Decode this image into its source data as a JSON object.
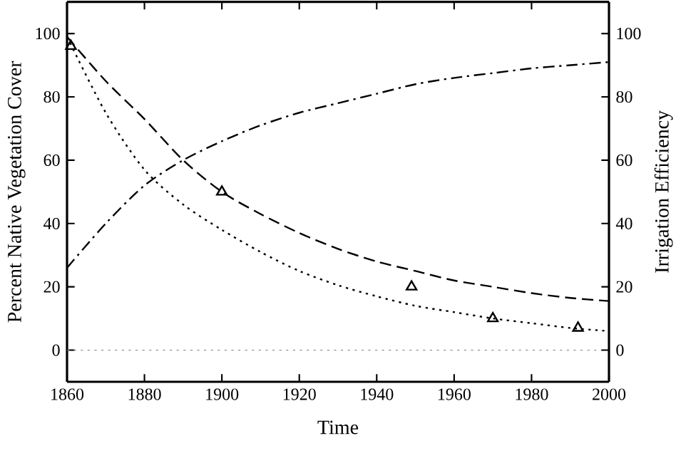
{
  "chart_data": {
    "type": "line",
    "xlabel": "Time",
    "ylabel": "Percent Native Vegetation Cover",
    "y2label": "Irrigation Efficiency",
    "xlim": [
      1860,
      2000
    ],
    "xticks": [
      1860,
      1880,
      1900,
      1920,
      1940,
      1960,
      1980,
      2000
    ],
    "ylim": [
      -10,
      110
    ],
    "yticks": [
      0,
      20,
      40,
      60,
      80,
      100
    ],
    "y2lim": [
      -10,
      110
    ],
    "y2ticks": [
      0,
      20,
      40,
      60,
      80,
      100
    ],
    "grid": false,
    "ref_lines": [
      {
        "axis": "y",
        "value": 0,
        "color": "#888888",
        "line_style": "dotted"
      }
    ],
    "series": [
      {
        "color": "#000000",
        "line_style": "dashed",
        "marker": "none",
        "x": [
          1860,
          1870,
          1880,
          1890,
          1900,
          1910,
          1920,
          1930,
          1940,
          1950,
          1960,
          1970,
          1980,
          1990,
          2000
        ],
        "values": [
          99,
          85,
          73,
          60,
          50,
          43,
          37,
          32,
          28,
          25,
          22,
          20,
          18,
          16.5,
          15.5
        ]
      },
      {
        "color": "#000000",
        "line_style": "dotted",
        "marker": "none",
        "x": [
          1860,
          1870,
          1880,
          1890,
          1900,
          1910,
          1920,
          1930,
          1940,
          1950,
          1960,
          1970,
          1980,
          1990,
          2000
        ],
        "values": [
          99,
          75,
          57,
          46,
          38,
          31,
          25,
          20.5,
          17,
          14,
          12,
          10,
          8.5,
          7,
          6
        ]
      },
      {
        "axis": "y2",
        "color": "#000000",
        "line_style": "dashdot",
        "marker": "none",
        "x": [
          1860,
          1870,
          1880,
          1890,
          1900,
          1910,
          1920,
          1930,
          1940,
          1950,
          1960,
          1970,
          1980,
          1990,
          2000
        ],
        "values": [
          26,
          40,
          52,
          60,
          66,
          71,
          75,
          78,
          81,
          84,
          86,
          87.5,
          89,
          90,
          91
        ]
      },
      {
        "type": "scatter",
        "color": "#000000",
        "marker": "triangle",
        "x": [
          1861,
          1900,
          1949,
          1970,
          1992
        ],
        "values": [
          96,
          50,
          20,
          10,
          7
        ]
      }
    ]
  }
}
